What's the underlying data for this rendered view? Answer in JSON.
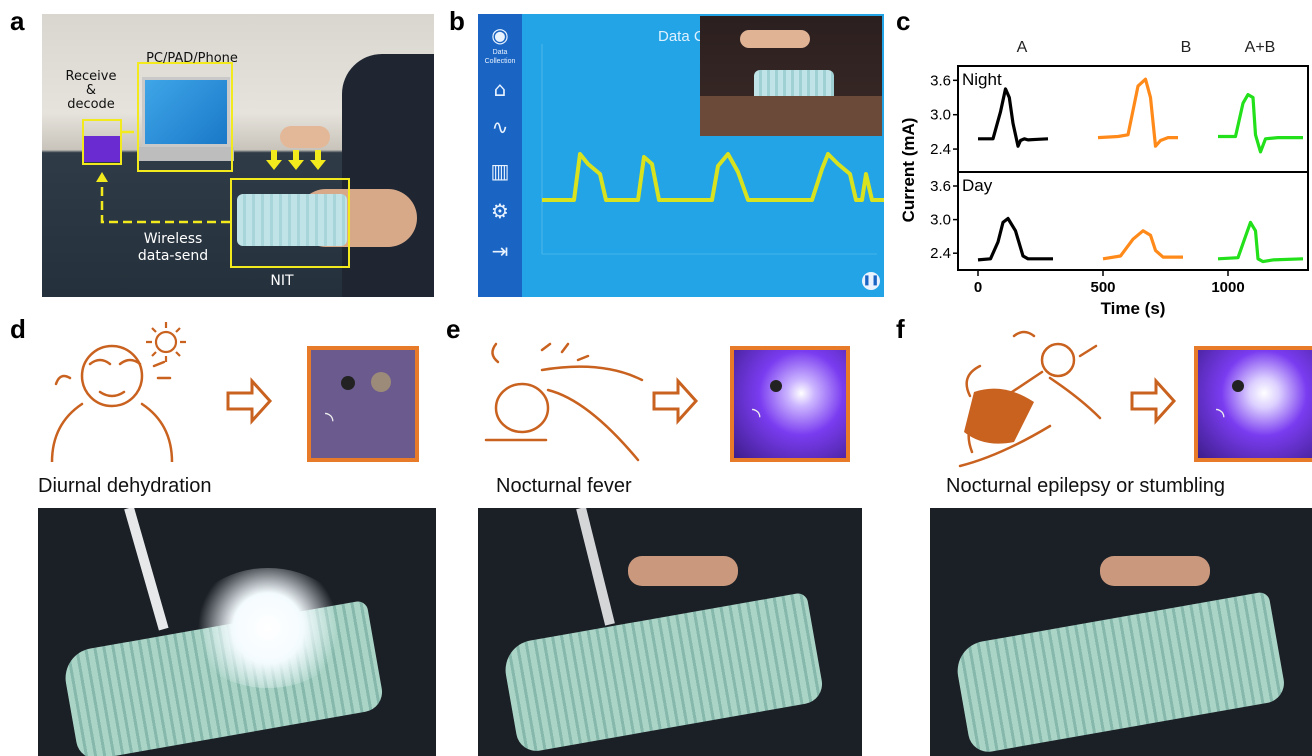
{
  "panels": {
    "a": {
      "letter": "a",
      "label_pc": "PC/PAD/Phone",
      "label_receive_1": "Receive",
      "label_receive_2": "&",
      "label_receive_3": "decode",
      "label_wireless_1": "Wireless",
      "label_wireless_2": "data-send",
      "label_nit": "NIT"
    },
    "b": {
      "letter": "b",
      "app_title": "Data C",
      "sidebar_caption_1": "Data",
      "sidebar_caption_2": "Collection"
    },
    "c": {
      "letter": "c"
    },
    "d": {
      "letter": "d",
      "caption": "Diurnal dehydration"
    },
    "e": {
      "letter": "e",
      "caption": "Nocturnal fever"
    },
    "f": {
      "letter": "f",
      "caption": "Nocturnal epilepsy or stumbling"
    }
  },
  "colors": {
    "accent_yellow": "#f2ea1c",
    "app_blue": "#22a4e6",
    "sidebar_blue": "#1a64c4",
    "trace_yellow": "#d9e21f",
    "sketch_orange": "#c9611f",
    "frame_orange": "#e87b2a",
    "series_A": "#000000",
    "series_B": "#ff8a1a",
    "series_AB": "#22e01a"
  },
  "chart_data": {
    "type": "line",
    "column_headers": [
      "A",
      "B",
      "A+B"
    ],
    "xlabel": "Time (s)",
    "ylabel": "Current (mA)",
    "xticks": [
      0,
      500,
      1000
    ],
    "xlim": [
      -80,
      1320
    ],
    "panels": [
      {
        "name": "Night",
        "yticks": [
          2.4,
          3.0,
          3.6
        ],
        "ylim": [
          2.0,
          3.85
        ],
        "series": [
          {
            "name": "A",
            "color": "#000000",
            "x": [
              0,
              60,
              90,
              110,
              125,
              140,
              160,
              170,
              185,
              200,
              240,
              280
            ],
            "y": [
              2.58,
              2.58,
              3.05,
              3.45,
              3.3,
              2.85,
              2.45,
              2.55,
              2.58,
              2.56,
              2.57,
              2.58
            ]
          },
          {
            "name": "B",
            "color": "#ff8a1a",
            "x": [
              480,
              560,
              600,
              640,
              670,
              690,
              710,
              730,
              760,
              800
            ],
            "y": [
              2.6,
              2.62,
              2.65,
              3.5,
              3.62,
              3.3,
              2.45,
              2.55,
              2.6,
              2.6
            ]
          },
          {
            "name": "A+B",
            "color": "#22e01a",
            "x": [
              960,
              1030,
              1060,
              1080,
              1100,
              1110,
              1130,
              1150,
              1200,
              1300
            ],
            "y": [
              2.62,
              2.62,
              3.2,
              3.35,
              3.3,
              2.65,
              2.35,
              2.58,
              2.6,
              2.6
            ]
          }
        ]
      },
      {
        "name": "Day",
        "yticks": [
          2.4,
          3.0,
          3.6
        ],
        "ylim": [
          2.1,
          3.85
        ],
        "series": [
          {
            "name": "A",
            "color": "#000000",
            "x": [
              0,
              50,
              80,
              100,
              120,
              150,
              180,
              200,
              240,
              300
            ],
            "y": [
              2.28,
              2.3,
              2.6,
              2.95,
              3.02,
              2.8,
              2.35,
              2.3,
              2.3,
              2.3
            ]
          },
          {
            "name": "B",
            "color": "#ff8a1a",
            "x": [
              500,
              570,
              620,
              660,
              690,
              710,
              740,
              780,
              820
            ],
            "y": [
              2.3,
              2.35,
              2.65,
              2.8,
              2.72,
              2.45,
              2.33,
              2.33,
              2.33
            ]
          },
          {
            "name": "A+B",
            "color": "#22e01a",
            "x": [
              960,
              1040,
              1070,
              1090,
              1110,
              1120,
              1140,
              1180,
              1300
            ],
            "y": [
              2.3,
              2.32,
              2.7,
              2.95,
              2.8,
              2.3,
              2.25,
              2.28,
              2.3
            ]
          }
        ]
      }
    ]
  }
}
